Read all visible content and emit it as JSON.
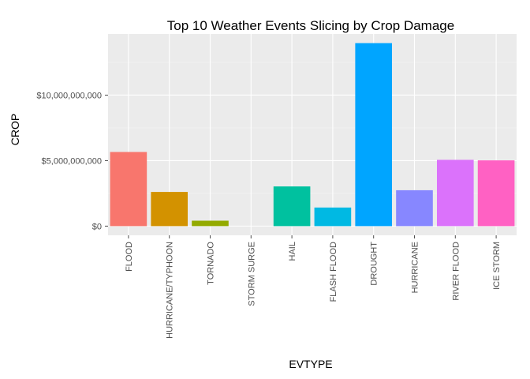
{
  "chart_data": {
    "type": "bar",
    "title": "Top 10 Weather Events Slicing by Crop Damage",
    "xlabel": "EVTYPE",
    "ylabel": "CROP",
    "categories": [
      "FLOOD",
      "HURRICANE/TYPHOON",
      "TORNADO",
      "STORM SURGE",
      "HAIL",
      "FLASH FLOOD",
      "DROUGHT",
      "HURRICANE",
      "RIVER FLOOD",
      "ICE STORM"
    ],
    "values": [
      5660000000,
      2610000000,
      415000000,
      5000,
      3030000000,
      1420000000,
      13970000000,
      2740000000,
      5060000000,
      5020000000
    ],
    "colors": [
      "#F8766D",
      "#D39200",
      "#93AA00",
      "#00BA38",
      "#00C19F",
      "#00B9E3",
      "#00A5FF",
      "#8787FF",
      "#DB72FB",
      "#FF61C3"
    ],
    "y_ticks": [
      0,
      5000000000,
      10000000000
    ],
    "y_tick_labels": [
      "$0",
      "$5,000,000,000",
      "$10,000,000,000"
    ],
    "ylim": [
      -700000000,
      14670000000
    ],
    "grid": true,
    "panel_background": "#EBEBEB",
    "grid_color": "#FFFFFF"
  }
}
